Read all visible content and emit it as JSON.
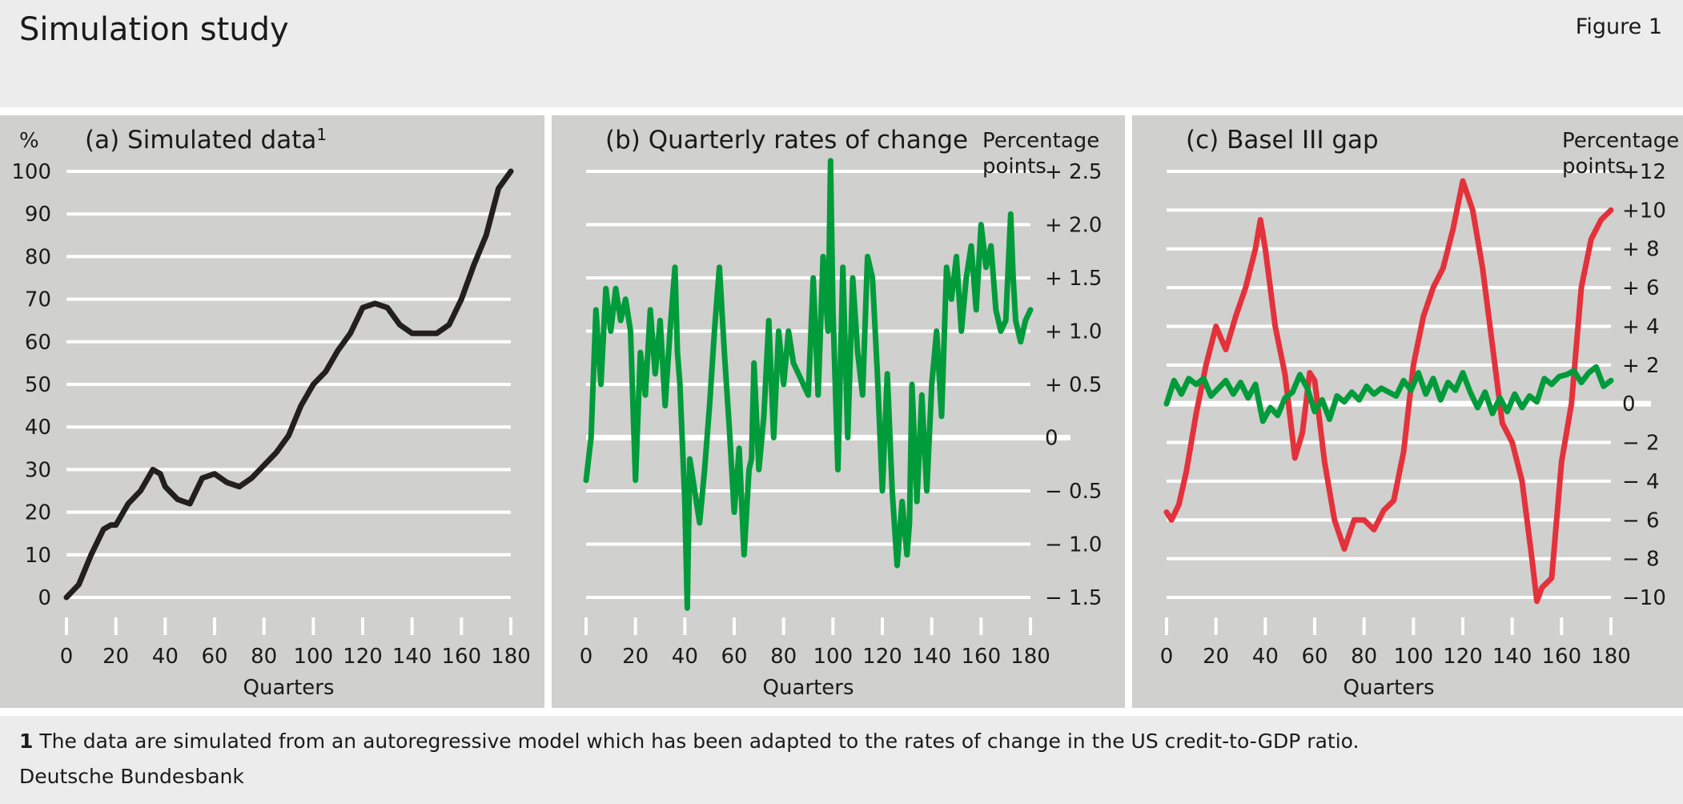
{
  "title": "Simulation study",
  "figure_label": "Figure 1",
  "footnote": {
    "number": "1",
    "text": " The data are simulated from an autoregressive model which has been adapted to the rates of change in the US credit-to-GDP ratio."
  },
  "source": "Deutsche Bundesbank",
  "colors": {
    "black_series": "#231f20",
    "green_series": "#009b3a",
    "red_series": "#e3323b",
    "panel_bg": "#d0d0ce",
    "grid": "#ffffff"
  },
  "chart_data": [
    {
      "type": "line",
      "title": "(a) Simulated data",
      "title_sup": "1",
      "unit_label": "%",
      "xlabel": "Quarters",
      "ylabel_side": "left",
      "xlim": [
        0,
        180
      ],
      "ylim": [
        0,
        100
      ],
      "x_ticks": [
        0,
        20,
        40,
        60,
        80,
        100,
        120,
        140,
        160,
        180
      ],
      "x_tick_labels": [
        "0",
        "20",
        "40",
        "60",
        "80",
        "100",
        "120",
        "140",
        "160",
        "180"
      ],
      "y_ticks": [
        0,
        10,
        20,
        30,
        40,
        50,
        60,
        70,
        80,
        90,
        100
      ],
      "y_tick_labels": [
        "0",
        "10",
        "20",
        "30",
        "40",
        "50",
        "60",
        "70",
        "80",
        "90",
        "100"
      ],
      "series": [
        {
          "name": "Simulated data",
          "color": "#231f20",
          "x": [
            0,
            5,
            10,
            15,
            18,
            20,
            25,
            30,
            35,
            38,
            40,
            45,
            50,
            55,
            60,
            65,
            70,
            75,
            80,
            85,
            90,
            95,
            100,
            105,
            110,
            115,
            120,
            125,
            130,
            135,
            140,
            145,
            150,
            155,
            160,
            165,
            170,
            175,
            180
          ],
          "values": [
            0,
            3,
            10,
            16,
            17,
            17,
            22,
            25,
            30,
            29,
            26,
            23,
            22,
            28,
            29,
            27,
            26,
            28,
            31,
            34,
            38,
            45,
            50,
            53,
            58,
            62,
            68,
            69,
            68,
            64,
            62,
            62,
            62,
            64,
            70,
            78,
            85,
            96,
            100
          ]
        }
      ]
    },
    {
      "type": "line",
      "title": "(b) Quarterly rates of change",
      "unit_label_line1": "Percentage",
      "unit_label_line2": "points",
      "xlabel": "Quarters",
      "ylabel_side": "right",
      "xlim": [
        0,
        180
      ],
      "ylim": [
        -1.5,
        2.5
      ],
      "x_ticks": [
        0,
        20,
        40,
        60,
        80,
        100,
        120,
        140,
        160,
        180
      ],
      "x_tick_labels": [
        "0",
        "20",
        "40",
        "60",
        "80",
        "100",
        "120",
        "140",
        "160",
        "180"
      ],
      "y_ticks": [
        -1.5,
        -1.0,
        -0.5,
        0,
        0.5,
        1.0,
        1.5,
        2.0,
        2.5
      ],
      "y_tick_labels": [
        "− 1.5",
        "− 1.0",
        "− 0.5",
        "0",
        "+ 0.5",
        "+ 1.0",
        "+ 1.5",
        "+ 2.0",
        "+ 2.5"
      ],
      "series": [
        {
          "name": "Quarterly rates of change",
          "color": "#009b3a",
          "x": [
            0,
            2,
            4,
            6,
            8,
            10,
            12,
            14,
            16,
            18,
            20,
            22,
            24,
            26,
            28,
            30,
            32,
            34,
            36,
            37,
            38,
            40,
            41,
            42,
            44,
            46,
            48,
            50,
            52,
            54,
            56,
            58,
            60,
            62,
            64,
            66,
            67,
            68,
            70,
            72,
            74,
            76,
            78,
            80,
            82,
            84,
            86,
            88,
            90,
            92,
            94,
            96,
            98,
            99,
            100,
            102,
            104,
            106,
            108,
            110,
            112,
            114,
            116,
            118,
            120,
            122,
            124,
            126,
            128,
            130,
            131,
            132,
            134,
            136,
            138,
            140,
            142,
            144,
            146,
            148,
            150,
            152,
            154,
            156,
            158,
            160,
            162,
            164,
            166,
            168,
            170,
            172,
            173,
            174,
            176,
            178,
            180
          ],
          "values": [
            -0.4,
            0.0,
            1.2,
            0.5,
            1.4,
            1.0,
            1.4,
            1.1,
            1.3,
            1.0,
            -0.4,
            0.8,
            0.4,
            1.2,
            0.6,
            1.1,
            0.3,
            1.0,
            1.6,
            0.8,
            0.5,
            -0.6,
            -1.6,
            -0.2,
            -0.5,
            -0.8,
            -0.3,
            0.3,
            1.0,
            1.6,
            0.8,
            0.1,
            -0.7,
            -0.1,
            -1.1,
            -0.3,
            -0.2,
            0.7,
            -0.3,
            0.2,
            1.1,
            0.0,
            1.0,
            0.5,
            1.0,
            0.7,
            0.6,
            0.5,
            0.4,
            1.5,
            0.4,
            1.7,
            1.0,
            2.6,
            1.2,
            -0.3,
            1.6,
            0.0,
            1.5,
            0.8,
            0.4,
            1.7,
            1.5,
            0.6,
            -0.5,
            0.6,
            -0.5,
            -1.2,
            -0.6,
            -1.1,
            -0.8,
            0.5,
            -0.6,
            0.4,
            -0.5,
            0.5,
            1.0,
            0.2,
            1.6,
            1.3,
            1.7,
            1.0,
            1.5,
            1.8,
            1.2,
            2.0,
            1.6,
            1.8,
            1.2,
            1.0,
            1.1,
            2.1,
            1.5,
            1.1,
            0.9,
            1.1,
            1.2
          ]
        }
      ]
    },
    {
      "type": "line",
      "title": "(c) Basel III gap",
      "unit_label_line1": "Percentage",
      "unit_label_line2": "points",
      "xlabel": "Quarters",
      "ylabel_side": "right",
      "xlim": [
        0,
        180
      ],
      "ylim": [
        -10,
        12
      ],
      "x_ticks": [
        0,
        20,
        40,
        60,
        80,
        100,
        120,
        140,
        160,
        180
      ],
      "x_tick_labels": [
        "0",
        "20",
        "40",
        "60",
        "80",
        "100",
        "120",
        "140",
        "160",
        "180"
      ],
      "y_ticks": [
        -10,
        -8,
        -6,
        -4,
        -2,
        0,
        2,
        4,
        6,
        8,
        10,
        12
      ],
      "y_tick_labels": [
        "−10",
        "− 8",
        "− 6",
        "− 4",
        "− 2",
        "0",
        "+ 2",
        "+ 4",
        "+ 6",
        "+ 8",
        "+10",
        "+12"
      ],
      "series": [
        {
          "name": "Gap (red)",
          "color": "#e3323b",
          "x": [
            0,
            2,
            5,
            8,
            12,
            16,
            20,
            24,
            28,
            32,
            36,
            38,
            40,
            44,
            48,
            52,
            55,
            58,
            60,
            64,
            68,
            72,
            76,
            80,
            84,
            88,
            92,
            96,
            100,
            104,
            108,
            112,
            116,
            120,
            124,
            128,
            132,
            136,
            140,
            144,
            148,
            150,
            152,
            156,
            160,
            164,
            168,
            172,
            176,
            180
          ],
          "values": [
            -5.6,
            -6.0,
            -5.2,
            -3.5,
            -0.5,
            2.0,
            4.0,
            2.8,
            4.5,
            6.0,
            8.0,
            9.5,
            8.0,
            4.0,
            1.5,
            -2.8,
            -1.5,
            1.6,
            1.2,
            -3.0,
            -6.0,
            -7.5,
            -6.0,
            -6.0,
            -6.5,
            -5.5,
            -5.0,
            -2.5,
            2.0,
            4.5,
            6.0,
            7.0,
            9.0,
            11.5,
            10.0,
            7.0,
            3.0,
            -1.0,
            -2.0,
            -4.0,
            -8.0,
            -10.2,
            -9.5,
            -9.0,
            -3.0,
            0.0,
            6.0,
            8.5,
            9.5,
            10.0
          ]
        },
        {
          "name": "Quarterly rates of change (green)",
          "color": "#009b3a",
          "x": [
            0,
            3,
            6,
            9,
            12,
            15,
            18,
            21,
            24,
            27,
            30,
            33,
            36,
            39,
            42,
            45,
            48,
            51,
            54,
            57,
            60,
            63,
            66,
            69,
            72,
            75,
            78,
            81,
            84,
            87,
            90,
            93,
            96,
            99,
            102,
            105,
            108,
            111,
            114,
            117,
            120,
            123,
            126,
            129,
            132,
            135,
            138,
            141,
            144,
            147,
            150,
            153,
            156,
            159,
            162,
            165,
            168,
            171,
            174,
            177,
            180
          ],
          "values": [
            0.0,
            1.2,
            0.5,
            1.3,
            1.0,
            1.3,
            0.4,
            0.8,
            1.2,
            0.5,
            1.1,
            0.3,
            1.0,
            -0.9,
            -0.2,
            -0.6,
            0.3,
            0.6,
            1.5,
            0.8,
            -0.4,
            0.2,
            -0.8,
            0.4,
            0.1,
            0.6,
            0.2,
            0.9,
            0.5,
            0.8,
            0.6,
            0.4,
            1.2,
            0.7,
            1.6,
            0.5,
            1.3,
            0.2,
            1.1,
            0.7,
            1.6,
            0.6,
            -0.2,
            0.6,
            -0.5,
            0.3,
            -0.4,
            0.5,
            -0.2,
            0.4,
            0.1,
            1.3,
            1.0,
            1.4,
            1.5,
            1.7,
            1.1,
            1.6,
            1.9,
            0.9,
            1.2
          ]
        }
      ]
    }
  ]
}
